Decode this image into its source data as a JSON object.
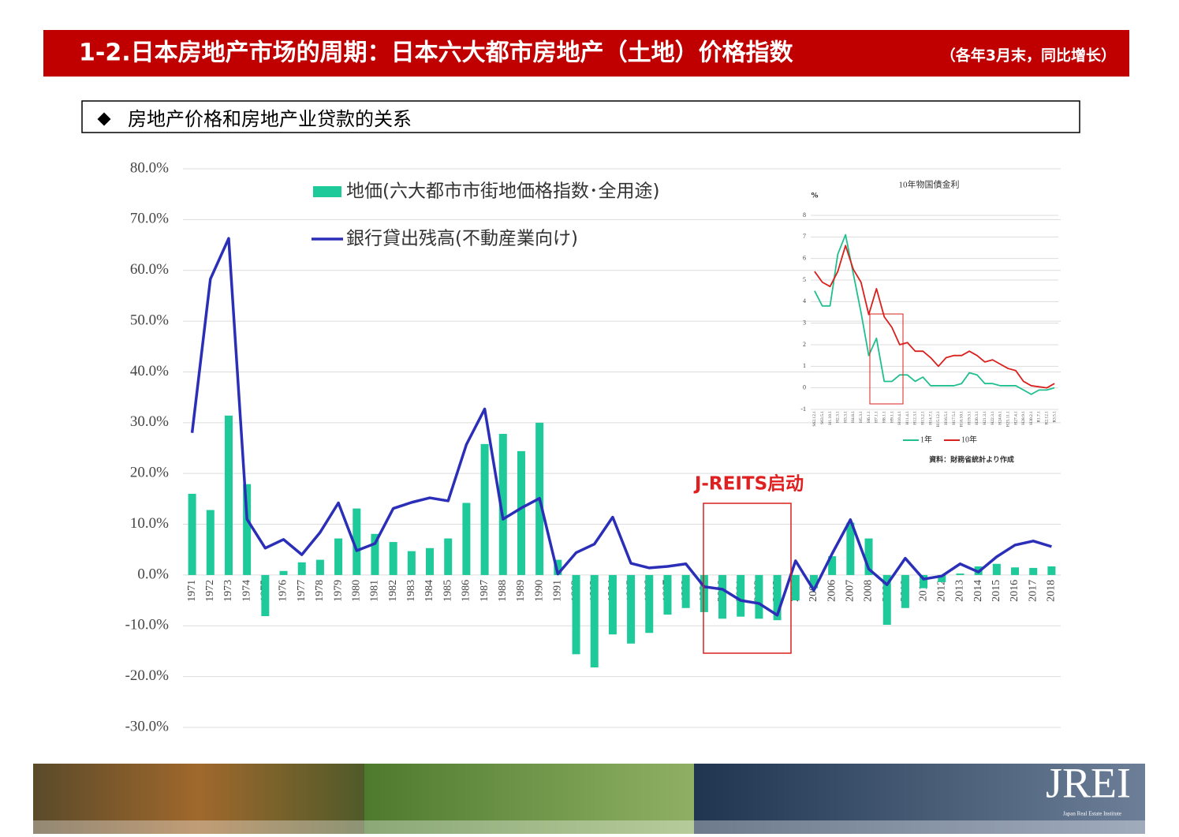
{
  "header": {
    "title": "1-2.日本房地产市场的周期：日本六大都市房地产（土地）价格指数",
    "subtitle": "（各年3月末，同比增长）"
  },
  "section": {
    "title": "房地产价格和房地产业贷款的关系"
  },
  "chart_data": [
    {
      "type": "combo",
      "categories": [
        "1971",
        "1972",
        "1973",
        "1974",
        "1975",
        "1976",
        "1977",
        "1978",
        "1979",
        "1980",
        "1981",
        "1982",
        "1983",
        "1984",
        "1985",
        "1986",
        "1987",
        "1988",
        "1989",
        "1990",
        "1991",
        "1992",
        "1993",
        "1994",
        "1995",
        "1996",
        "1997",
        "1998",
        "1999",
        "2000",
        "2001",
        "2002",
        "2003",
        "2004",
        "2005",
        "2006",
        "2007",
        "2008",
        "2009",
        "2010",
        "2011",
        "2012",
        "2013",
        "2014",
        "2015",
        "2016",
        "2017",
        "2018"
      ],
      "series": [
        {
          "name": "地価(六大都市市街地価格指数･全用途)",
          "type": "bar",
          "color": "#1ec99a",
          "values": [
            16,
            12.8,
            31.4,
            17.9,
            -8.1,
            0.8,
            2.5,
            3,
            7.2,
            13.1,
            8.1,
            6.5,
            4.7,
            5.3,
            7.2,
            14.2,
            25.8,
            27.8,
            24.4,
            30,
            3,
            -15.6,
            -18.2,
            -11.7,
            -13.5,
            -11.4,
            -7.8,
            -6.5,
            -7.3,
            -8.6,
            -8.2,
            -8.6,
            -8.9,
            -5,
            -2.6,
            3.7,
            10.3,
            7.2,
            -9.8,
            -6.5,
            -2.6,
            -1.4,
            0.3,
            1.7,
            2.2,
            1.5,
            1.4,
            1.7
          ]
        },
        {
          "name": "銀行貸出残高(不動産業向け)",
          "type": "line",
          "color": "#2b2fb8",
          "values": [
            28,
            58.3,
            66.3,
            11,
            5.3,
            7,
            4,
            8.4,
            14.2,
            4.8,
            6.2,
            13.1,
            14.3,
            15.2,
            14.6,
            25.7,
            32.7,
            11,
            13.2,
            15.1,
            0.2,
            4.4,
            6.1,
            11.4,
            2.3,
            1.4,
            1.7,
            2.2,
            -2.3,
            -2.8,
            -5,
            -5.6,
            -7.9,
            2.8,
            -3,
            4.2,
            10.9,
            1.2,
            -1.9,
            3.3,
            -0.8,
            -0.2,
            2.2,
            0.6,
            3.6,
            5.9,
            6.7,
            5.6
          ]
        }
      ],
      "ylim": [
        -30,
        80
      ],
      "yticks": [
        {
          "value": -30,
          "label": "-30.0%"
        },
        {
          "value": -20,
          "label": "-20.0%"
        },
        {
          "value": -10,
          "label": "-10.0%"
        },
        {
          "value": 0,
          "label": "0.0%"
        },
        {
          "value": 10,
          "label": "10.0%"
        },
        {
          "value": 20,
          "label": "20.0%"
        },
        {
          "value": 30,
          "label": "30.0%"
        },
        {
          "value": 40,
          "label": "40.0%"
        },
        {
          "value": 50,
          "label": "50.0%"
        },
        {
          "value": 60,
          "label": "60.0%"
        },
        {
          "value": 70,
          "label": "70.0%"
        },
        {
          "value": 80,
          "label": "80.0%"
        }
      ],
      "grid": true,
      "annotation": "J-REITS启动"
    },
    {
      "type": "line",
      "title": "10年物国債金利",
      "ylabel": "%",
      "categories": [
        "S62.12.1",
        "S63.5.1",
        "H1.10.1",
        "H2.3.1",
        "H3.3.1",
        "H4.8.1",
        "H5.3.1",
        "H6.1.1",
        "H7.1.1",
        "H8.1.1",
        "H9.1.1",
        "H10.4.1",
        "H11.4.1",
        "H12.3.1",
        "H13.2.1",
        "H14.7.1",
        "H15.12.1",
        "H16.5.1",
        "H17.5.1",
        "H18.10.1",
        "H19.3.1",
        "H20.3.1",
        "H21.3.1",
        "H22.3.1",
        "H24.6.1",
        "H25.11.1",
        "H27.4.1",
        "H28.9.1",
        "H30.2.1",
        "R1.7.1",
        "R2.12.1",
        "R3.5.1"
      ],
      "series": [
        {
          "name": "1年",
          "color": "#1fbf8f",
          "values": [
            4.5,
            3.8,
            3.8,
            6.2,
            7.1,
            5.3,
            3.5,
            1.5,
            2.3,
            0.3,
            0.3,
            0.6,
            0.6,
            0.3,
            0.5,
            0.1,
            0.1,
            0.1,
            0.1,
            0.2,
            0.7,
            0.6,
            0.2,
            0.2,
            0.1,
            0.1,
            0.1,
            -0.1,
            -0.3,
            -0.1,
            -0.1,
            0
          ]
        },
        {
          "name": "10年",
          "color": "#d9201c",
          "values": [
            5.4,
            4.9,
            4.7,
            5.4,
            6.6,
            5.5,
            4.9,
            3.4,
            4.6,
            3.3,
            2.8,
            2,
            2.1,
            1.7,
            1.7,
            1.4,
            1,
            1.4,
            1.5,
            1.5,
            1.7,
            1.5,
            1.2,
            1.3,
            1.1,
            0.9,
            0.8,
            0.3,
            0.1,
            0.05,
            0,
            0.2
          ]
        }
      ],
      "ylim": [
        -1,
        8
      ],
      "yticks": [
        -1,
        0,
        1,
        2,
        3,
        4,
        5,
        6,
        7,
        8
      ],
      "grid": true,
      "source": "資料：財務省統計より作成"
    }
  ],
  "footer": {
    "logo": "JREI",
    "caption": "Japan Real Estate Institute"
  }
}
